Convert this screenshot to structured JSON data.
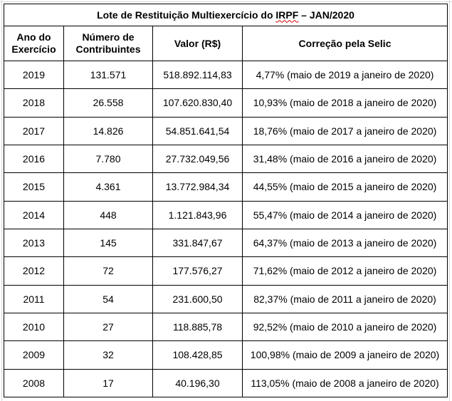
{
  "table": {
    "title_prefix": "Lote de Restituição Multiexercício do ",
    "title_flagged": "IRPF",
    "title_suffix": " – JAN/2020",
    "headers": {
      "ano_line1": "Ano do",
      "ano_line2": "Exercício",
      "numero_line1": "Número de",
      "numero_line2": "Contribuintes",
      "valor": "Valor (R$)",
      "correcao": "Correção pela Selic"
    },
    "rows": [
      {
        "ano": "2019",
        "contribuintes": "131.571",
        "valor": "518.892.114,83",
        "correcao": "4,77% (maio de 2019 a janeiro de 2020)"
      },
      {
        "ano": "2018",
        "contribuintes": "26.558",
        "valor": "107.620.830,40",
        "correcao": "10,93% (maio de 2018 a janeiro de 2020)"
      },
      {
        "ano": "2017",
        "contribuintes": "14.826",
        "valor": "54.851.641,54",
        "correcao": "18,76% (maio de 2017 a janeiro de 2020)"
      },
      {
        "ano": "2016",
        "contribuintes": "7.780",
        "valor": "27.732.049,56",
        "correcao": "31,48% (maio de 2016 a janeiro de 2020)"
      },
      {
        "ano": "2015",
        "contribuintes": "4.361",
        "valor": "13.772.984,34",
        "correcao": "44,55% (maio de 2015 a janeiro de 2020)"
      },
      {
        "ano": "2014",
        "contribuintes": "448",
        "valor": "1.121.843,96",
        "correcao": "55,47% (maio de 2014 a janeiro de 2020)"
      },
      {
        "ano": "2013",
        "contribuintes": "145",
        "valor": "331.847,67",
        "correcao": "64,37% (maio de 2013 a janeiro de 2020)"
      },
      {
        "ano": "2012",
        "contribuintes": "72",
        "valor": "177.576,27",
        "correcao": "71,62% (maio de 2012 a janeiro de 2020)"
      },
      {
        "ano": "2011",
        "contribuintes": "54",
        "valor": "231.600,50",
        "correcao": "82,37% (maio de 2011 a janeiro de 2020)"
      },
      {
        "ano": "2010",
        "contribuintes": "27",
        "valor": "118.885,78",
        "correcao": "92,52% (maio de 2010 a janeiro de 2020)"
      },
      {
        "ano": "2009",
        "contribuintes": "32",
        "valor": "108.428,85",
        "correcao": "100,98% (maio de 2009 a janeiro de 2020)"
      },
      {
        "ano": "2008",
        "contribuintes": "17",
        "valor": "40.196,30",
        "correcao": "113,05% (maio de 2008 a janeiro de 2020)"
      }
    ]
  },
  "colors": {
    "border": "#000000",
    "gridline": "#d9d9d9",
    "spellcheck_underline": "#d40000"
  }
}
